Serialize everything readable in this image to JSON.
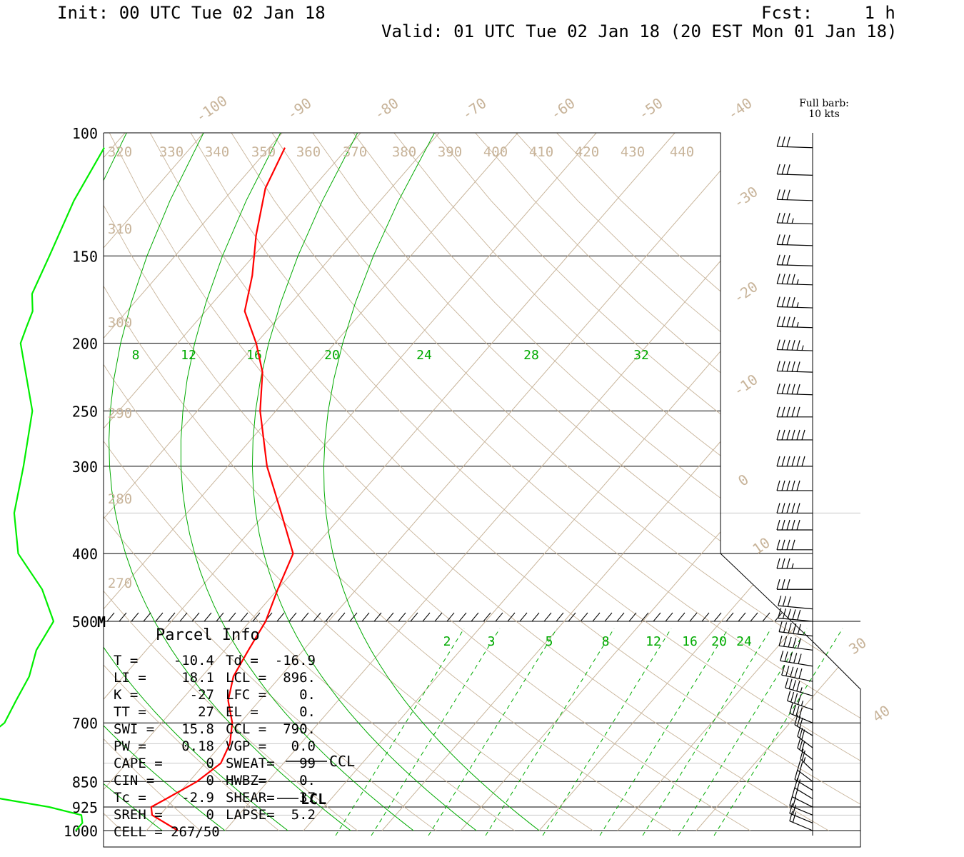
{
  "header": {
    "init": "Init: 00 UTC Tue 02 Jan 18",
    "fcst": "Fcst:     1 h",
    "valid": "Valid: 01 UTC Tue 02 Jan 18 (20 EST Mon 01 Jan 18)"
  },
  "barb_legend": {
    "line1": "Full barb:",
    "line2": "10 kts"
  },
  "colors": {
    "temperature": "#ff0000",
    "dewpoint": "#00ee00",
    "isotherm": "#c8b49a",
    "mixing_ratio": "#00aa00"
  },
  "chart_data": {
    "type": "line",
    "title": "",
    "y_scale": "log-pressure",
    "ylim": [
      1000,
      100
    ],
    "xlim": [
      -40,
      50
    ],
    "pressure_ticks": [
      "100",
      "150",
      "200",
      "250",
      "300",
      "400",
      "500",
      "700",
      "850",
      "925",
      "1000"
    ],
    "isotherm_labels": [
      "-100",
      "-90",
      "-80",
      "-70",
      "-60",
      "-50",
      "-40",
      "-30",
      "-20",
      "-10",
      "0",
      "10",
      "30",
      "40"
    ],
    "theta_labels": [
      "320",
      "330",
      "340",
      "350",
      "360",
      "370",
      "380",
      "390",
      "400",
      "410",
      "420",
      "430",
      "440",
      "310",
      "300",
      "290",
      "280",
      "270"
    ],
    "mixing_ratio_labels_upper": [
      "8",
      "12",
      "16",
      "20",
      "24",
      "28",
      "32"
    ],
    "mixing_ratio_labels_lower": [
      "2",
      "3",
      "5",
      "8",
      "12",
      "16",
      "20",
      "24"
    ],
    "series": [
      {
        "name": "temperature",
        "points": [
          [
            -6,
            1000
          ],
          [
            -11,
            950
          ],
          [
            -12,
            925
          ],
          [
            -11,
            900
          ],
          [
            -9,
            850
          ],
          [
            -8,
            800
          ],
          [
            -9,
            750
          ],
          [
            -11,
            700
          ],
          [
            -14,
            650
          ],
          [
            -16,
            600
          ],
          [
            -17,
            550
          ],
          [
            -18,
            500
          ],
          [
            -20,
            450
          ],
          [
            -22,
            400
          ],
          [
            -28,
            350
          ],
          [
            -35,
            300
          ],
          [
            -42,
            250
          ],
          [
            -46,
            220
          ],
          [
            -50,
            200
          ],
          [
            -55,
            180
          ],
          [
            -58,
            160
          ],
          [
            -62,
            140
          ],
          [
            -66,
            120
          ],
          [
            -68,
            105
          ]
        ]
      },
      {
        "name": "dewpoint",
        "points": [
          [
            -19,
            1000
          ],
          [
            -19,
            975
          ],
          [
            -20,
            950
          ],
          [
            -25,
            925
          ],
          [
            -32,
            900
          ],
          [
            -38,
            875
          ],
          [
            -38,
            850
          ],
          [
            -39,
            800
          ],
          [
            -41,
            750
          ],
          [
            -40,
            700
          ],
          [
            -41,
            650
          ],
          [
            -42,
            600
          ],
          [
            -44,
            550
          ],
          [
            -45,
            500
          ],
          [
            -50,
            450
          ],
          [
            -57,
            400
          ],
          [
            -62,
            350
          ],
          [
            -66,
            300
          ],
          [
            -71,
            250
          ],
          [
            -80,
            200
          ],
          [
            -81,
            190
          ],
          [
            -82,
            180
          ],
          [
            -84,
            170
          ],
          [
            -86,
            150
          ],
          [
            -89,
            125
          ],
          [
            -91,
            105
          ]
        ]
      }
    ],
    "wind_barbs": [
      {
        "p": 105,
        "dir": 275,
        "kt": 30
      },
      {
        "p": 115,
        "dir": 275,
        "kt": 30
      },
      {
        "p": 125,
        "dir": 275,
        "kt": 30
      },
      {
        "p": 135,
        "dir": 275,
        "kt": 35
      },
      {
        "p": 145,
        "dir": 275,
        "kt": 30
      },
      {
        "p": 155,
        "dir": 275,
        "kt": 30
      },
      {
        "p": 165,
        "dir": 275,
        "kt": 45
      },
      {
        "p": 178,
        "dir": 275,
        "kt": 45
      },
      {
        "p": 190,
        "dir": 275,
        "kt": 45
      },
      {
        "p": 205,
        "dir": 275,
        "kt": 55
      },
      {
        "p": 220,
        "dir": 275,
        "kt": 50
      },
      {
        "p": 237,
        "dir": 275,
        "kt": 50
      },
      {
        "p": 255,
        "dir": 270,
        "kt": 50
      },
      {
        "p": 275,
        "dir": 270,
        "kt": 60
      },
      {
        "p": 300,
        "dir": 270,
        "kt": 60
      },
      {
        "p": 325,
        "dir": 270,
        "kt": 50
      },
      {
        "p": 350,
        "dir": 270,
        "kt": 50
      },
      {
        "p": 370,
        "dir": 270,
        "kt": 50
      },
      {
        "p": 395,
        "dir": 270,
        "kt": 40
      },
      {
        "p": 420,
        "dir": 270,
        "kt": 35
      },
      {
        "p": 450,
        "dir": 270,
        "kt": 30
      },
      {
        "p": 480,
        "dir": 285,
        "kt": 30
      },
      {
        "p": 500,
        "dir": 285,
        "kt": 50
      },
      {
        "p": 525,
        "dir": 290,
        "kt": 50
      },
      {
        "p": 550,
        "dir": 290,
        "kt": 50
      },
      {
        "p": 580,
        "dir": 295,
        "kt": 50
      },
      {
        "p": 610,
        "dir": 300,
        "kt": 50
      },
      {
        "p": 640,
        "dir": 310,
        "kt": 45
      },
      {
        "p": 670,
        "dir": 315,
        "kt": 45
      },
      {
        "p": 700,
        "dir": 320,
        "kt": 40
      },
      {
        "p": 730,
        "dir": 330,
        "kt": 30
      },
      {
        "p": 760,
        "dir": 335,
        "kt": 30
      },
      {
        "p": 790,
        "dir": 335,
        "kt": 30
      },
      {
        "p": 820,
        "dir": 340,
        "kt": 25
      },
      {
        "p": 850,
        "dir": 335,
        "kt": 20
      },
      {
        "p": 875,
        "dir": 330,
        "kt": 20
      },
      {
        "p": 900,
        "dir": 330,
        "kt": 20
      },
      {
        "p": 925,
        "dir": 325,
        "kt": 20
      },
      {
        "p": 950,
        "dir": 320,
        "kt": 20
      },
      {
        "p": 975,
        "dir": 320,
        "kt": 20
      },
      {
        "p": 1000,
        "dir": 320,
        "kt": 20
      }
    ],
    "annotations": {
      "mark_500": "M",
      "ccl": "CCL",
      "lcl": "LCL"
    },
    "parcel_info": {
      "title": "Parcel Info",
      "rows": [
        [
          "T  =",
          "-10.4",
          "Td =",
          "-16.9"
        ],
        [
          "LI =",
          "18.1",
          "LCL =",
          "896."
        ],
        [
          "K  =",
          "-27",
          "LFC =",
          "0."
        ],
        [
          "TT =",
          "27",
          "EL  =",
          "0."
        ],
        [
          "SWI =",
          "15.8",
          "CCL =",
          "790."
        ],
        [
          "PW =",
          "0.18",
          "VGP =",
          "0.0"
        ],
        [
          "CAPE =",
          "0",
          "SWEAT=",
          "99"
        ],
        [
          "CIN =",
          "0",
          "HWBZ=",
          "0."
        ],
        [
          "Tc =",
          "-2.9",
          "SHEAR=",
          "37"
        ],
        [
          "SREH =",
          "0",
          "LAPSE=",
          "5.2"
        ]
      ],
      "cell": "CELL = 267/50"
    }
  }
}
